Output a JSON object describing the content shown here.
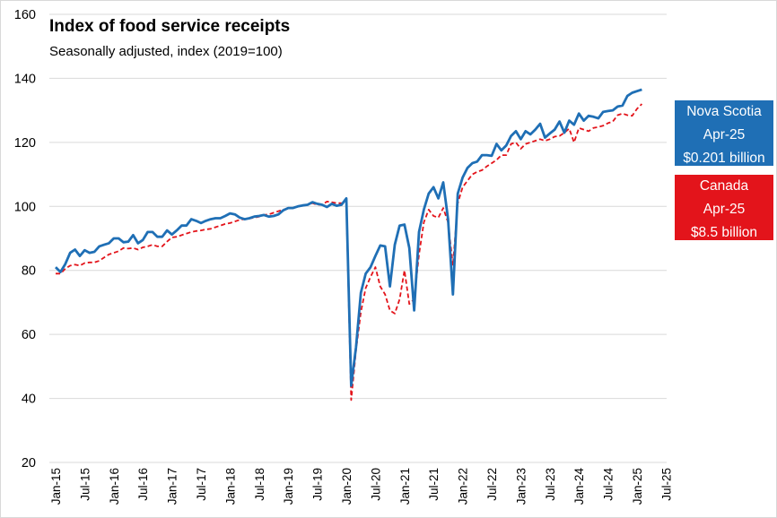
{
  "colors": {
    "nova_scotia": "#1f6fb5",
    "canada": "#e3141b",
    "grid": "#d9d9d9"
  },
  "callouts": {
    "nova_scotia": {
      "line1": "Nova Scotia",
      "line2": "Apr-25",
      "line3": "$0.201 billion"
    },
    "canada": {
      "line1": "Canada",
      "line2": "Apr-25",
      "line3": "$8.5 billion"
    }
  },
  "chart_data": {
    "type": "line",
    "title": "Index of food service receipts",
    "subtitle": "Seasonally adjusted, index (2019=100)",
    "xlabel": "",
    "ylabel": "",
    "ylim": [
      20,
      160
    ],
    "grid": true,
    "y_ticks": [
      "160",
      "140",
      "120",
      "100",
      "80",
      "60",
      "40",
      "20"
    ],
    "x_tick_labels": [
      "Jan-15",
      "Jul-15",
      "Jan-16",
      "Jul-16",
      "Jan-17",
      "Jul-17",
      "Jan-18",
      "Jul-18",
      "Jan-19",
      "Jul-19",
      "Jan-20",
      "Jul-20",
      "Jan-21",
      "Jul-21",
      "Jan-22",
      "Jul-22",
      "Jan-23",
      "Jul-23",
      "Jan-24",
      "Jul-24",
      "Jan-25",
      "Jul-25"
    ],
    "x_start": "Jan-15",
    "series": [
      {
        "name": "Nova Scotia",
        "style": "solid",
        "values": [
          81,
          79.5,
          82,
          85.5,
          86.5,
          84.5,
          86.3,
          85.5,
          85.8,
          87.5,
          88,
          88.5,
          90,
          90,
          88.8,
          89,
          91,
          88.5,
          89.5,
          92,
          92,
          90.5,
          90.5,
          92.5,
          91.2,
          92.5,
          94,
          94,
          96,
          95.5,
          94.8,
          95.5,
          96,
          96.3,
          96.3,
          97,
          97.8,
          97.5,
          96.5,
          96,
          96.3,
          96.8,
          97,
          97.3,
          96.8,
          97,
          97.5,
          98.8,
          99.5,
          99.5,
          100,
          100.3,
          100.5,
          101.3,
          100.8,
          100.5,
          99.8,
          100.8,
          100.2,
          100.5,
          102.5,
          44,
          56,
          73,
          79,
          81,
          84.5,
          87.8,
          87.5,
          75,
          88,
          94,
          94.3,
          87,
          67.5,
          92,
          99,
          104,
          106,
          102.5,
          107.5,
          96,
          72.5,
          104,
          109,
          112,
          113.5,
          114,
          116,
          116,
          115.8,
          119.5,
          117.5,
          119,
          122,
          123.5,
          121,
          123.5,
          122.5,
          124,
          125.8,
          121.5,
          122.8,
          124,
          126.5,
          123,
          126.8,
          125.5,
          129,
          126.8,
          128.3,
          128,
          127.5,
          129.5,
          129.8,
          130,
          131.2,
          131.5,
          134.5,
          135.5,
          136,
          136.5
        ]
      },
      {
        "name": "Canada",
        "style": "dashed",
        "values": [
          79,
          79,
          80.5,
          81.5,
          81.8,
          81.5,
          82.3,
          82.5,
          82.5,
          83,
          84,
          85,
          85.5,
          86,
          87,
          86.8,
          87,
          86.5,
          87.2,
          87.5,
          88,
          87.5,
          87.5,
          89,
          90.3,
          90.5,
          91,
          91.5,
          92,
          92.3,
          92.5,
          92.8,
          93,
          93.5,
          94,
          94.5,
          94.8,
          95.3,
          95.8,
          96,
          96.2,
          96.5,
          96.8,
          97.3,
          97.5,
          98,
          98.5,
          99,
          99.3,
          99.5,
          100,
          100.2,
          100.5,
          101,
          100.5,
          100.5,
          101.5,
          101.3,
          101,
          101,
          100.5,
          39.5,
          55,
          67,
          74.5,
          78,
          81,
          75,
          72.5,
          67.5,
          66.5,
          71,
          80,
          69.5,
          71,
          85,
          95,
          99,
          97,
          96.5,
          99.5,
          95,
          81.5,
          101,
          106,
          108,
          110,
          110.8,
          111.3,
          112.5,
          113.5,
          114.5,
          116,
          116,
          119.5,
          120,
          118,
          119.5,
          120,
          120.5,
          121,
          120.5,
          121,
          121.8,
          122,
          123,
          124.3,
          120,
          124.5,
          124,
          123.5,
          124.5,
          124.8,
          125.2,
          126,
          126.5,
          128.5,
          129,
          128.5,
          128.3,
          130.5,
          132
        ]
      }
    ]
  }
}
